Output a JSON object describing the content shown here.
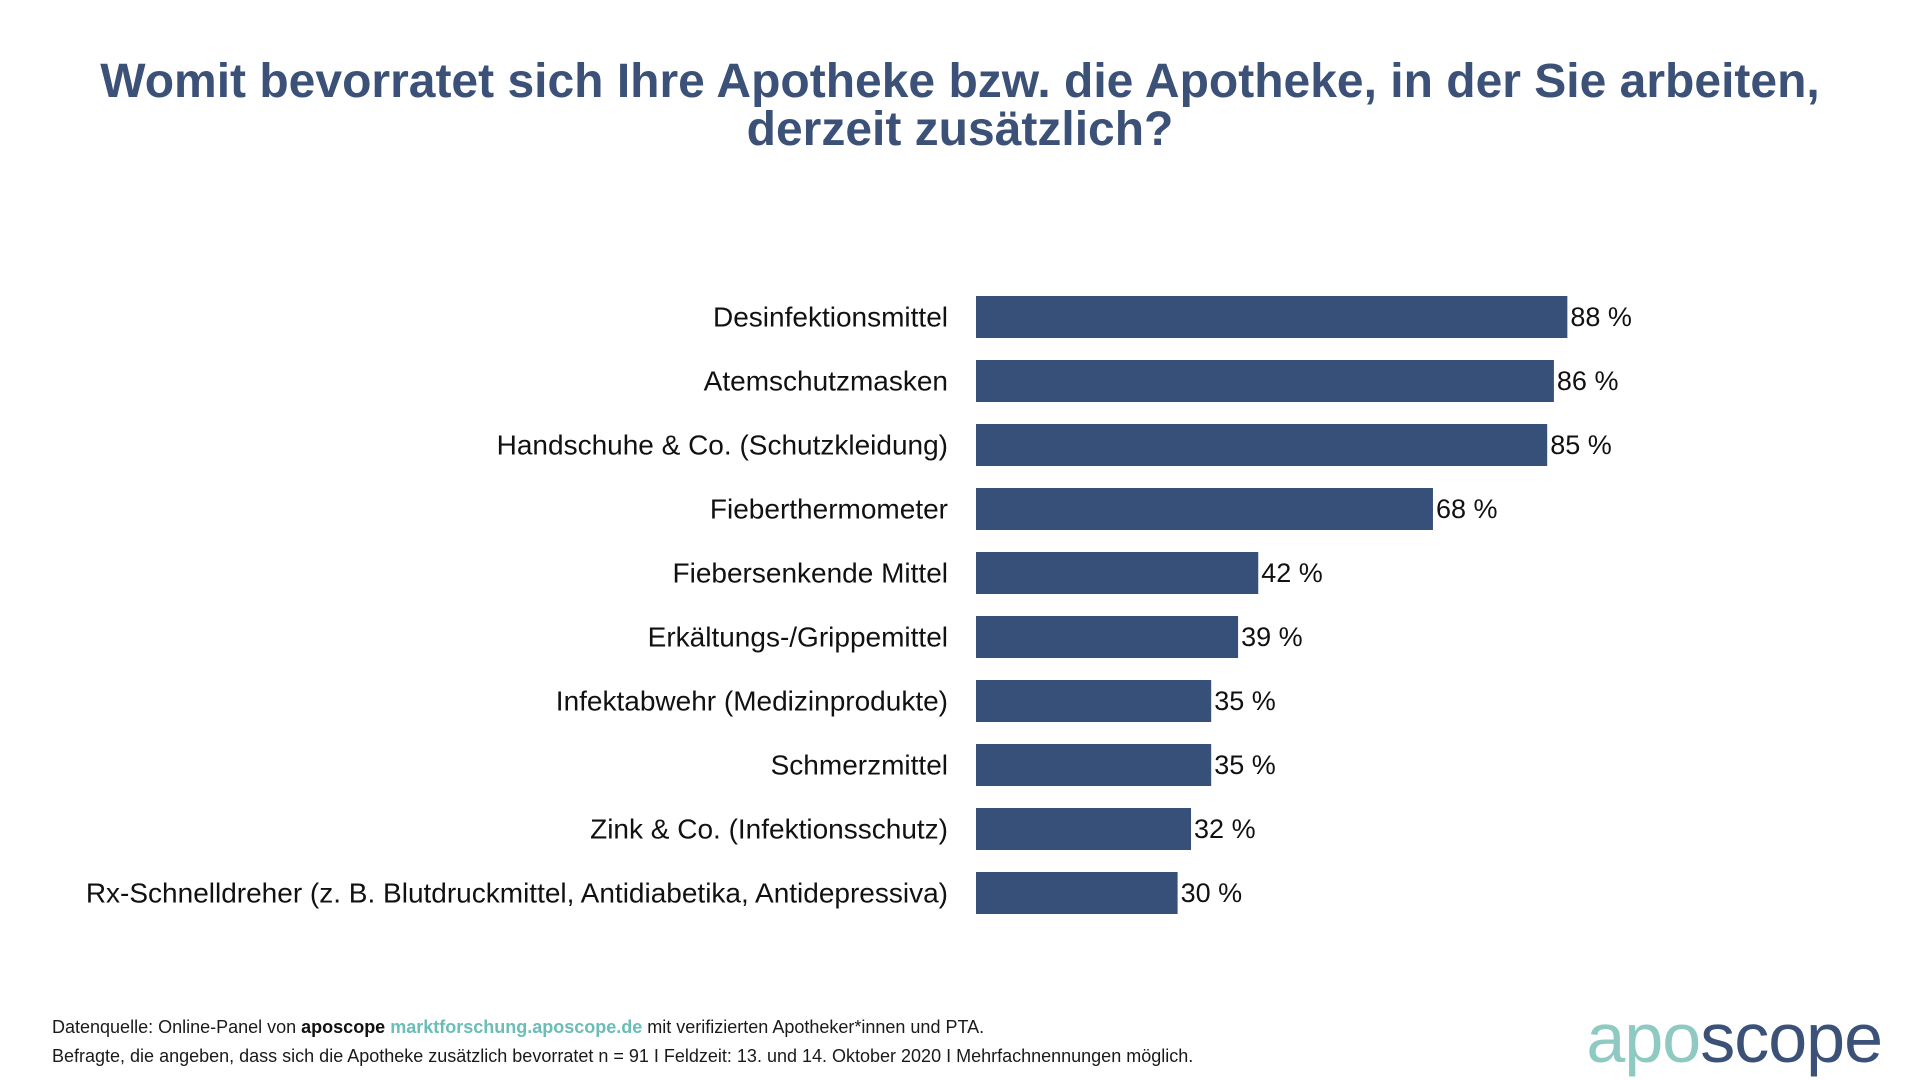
{
  "title": {
    "line1": "Womit bevorratet sich Ihre Apotheke bzw. die Apotheke, in der Sie arbeiten,",
    "line2": "derzeit zusätzlich?"
  },
  "colors": {
    "bar": "#36507a",
    "title": "#3c5178",
    "accent": "#6bbdb7",
    "logo_light": "#8ec9c2",
    "logo_dark": "#3c5178"
  },
  "chart_data": {
    "type": "bar",
    "orientation": "horizontal",
    "title": "Womit bevorratet sich Ihre Apotheke bzw. die Apotheke, in der Sie arbeiten, derzeit zusätzlich?",
    "categories": [
      "Desinfektionsmittel",
      "Atemschutzmasken",
      "Handschuhe & Co. (Schutzkleidung)",
      "Fieberthermometer",
      "Fiebersenkende Mittel",
      "Erkältungs-/Grippemittel",
      "Infektabwehr (Medizinprodukte)",
      "Schmerzmittel",
      "Zink & Co. (Infektionsschutz)",
      "Rx-Schnelldreher (z. B. Blutdruckmittel, Antidiabetika, Antidepressiva)"
    ],
    "values": [
      88,
      86,
      85,
      68,
      42,
      39,
      35,
      35,
      32,
      30
    ],
    "value_labels": [
      "88 %",
      "86 %",
      "85 %",
      "68 %",
      "42 %",
      "39 %",
      "35 %",
      "35 %",
      "32 %",
      "30 %"
    ],
    "unit": "%",
    "xlim": [
      0,
      100
    ],
    "grid": false,
    "legend": "none"
  },
  "footer": {
    "line1_prefix": "Datenquelle: Online-Panel von ",
    "line1_brand": "aposcope",
    "line1_link": "marktforschung.aposcope.de",
    "line1_suffix": " mit verifizierten Apotheker*innen und PTA.",
    "line2": "Befragte, die angeben, dass sich die Apotheke zusätzlich bevorratet n = 91 I Feldzeit: 13. und 14. Oktober 2020 I Mehrfachnennungen möglich."
  },
  "logo": {
    "part1": "apo",
    "part2": "scope"
  }
}
